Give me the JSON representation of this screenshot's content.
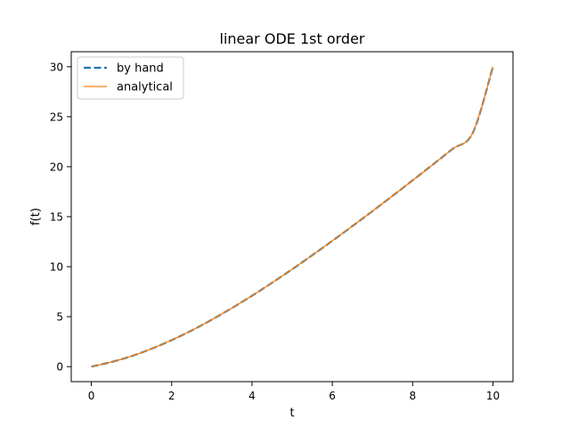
{
  "chart_data": {
    "type": "line",
    "title": "linear ODE 1st order",
    "xlabel": "t",
    "ylabel": "f(t)",
    "xlim": [
      -0.5,
      10.5
    ],
    "ylim": [
      -1.5,
      31.5
    ],
    "xticks": [
      0,
      2,
      4,
      6,
      8,
      10
    ],
    "yticks": [
      0,
      5,
      10,
      15,
      20,
      25,
      30
    ],
    "grid": false,
    "legend_position": "top-left",
    "x": [
      0,
      0.5,
      1,
      1.5,
      2,
      2.5,
      3,
      3.5,
      4,
      4.5,
      5,
      5.5,
      6,
      6.5,
      7,
      7.5,
      8,
      8.5,
      9,
      9.5,
      10
    ],
    "series": [
      {
        "name": "by hand",
        "color": "#1f77b4",
        "style": "dashed",
        "values": [
          0,
          0.46,
          1.05,
          1.79,
          2.65,
          3.62,
          4.7,
          5.86,
          7.09,
          8.39,
          9.74,
          11.14,
          12.58,
          14.05,
          15.55,
          17.08,
          18.63,
          20.2,
          21.79,
          23.39,
          30.0
        ]
      },
      {
        "name": "analytical",
        "color": "#ff7f0e",
        "style": "solid",
        "values": [
          0,
          0.46,
          1.05,
          1.79,
          2.65,
          3.62,
          4.7,
          5.86,
          7.09,
          8.39,
          9.74,
          11.14,
          12.58,
          14.05,
          15.55,
          17.08,
          18.63,
          20.2,
          21.79,
          23.39,
          30.0
        ]
      }
    ]
  }
}
